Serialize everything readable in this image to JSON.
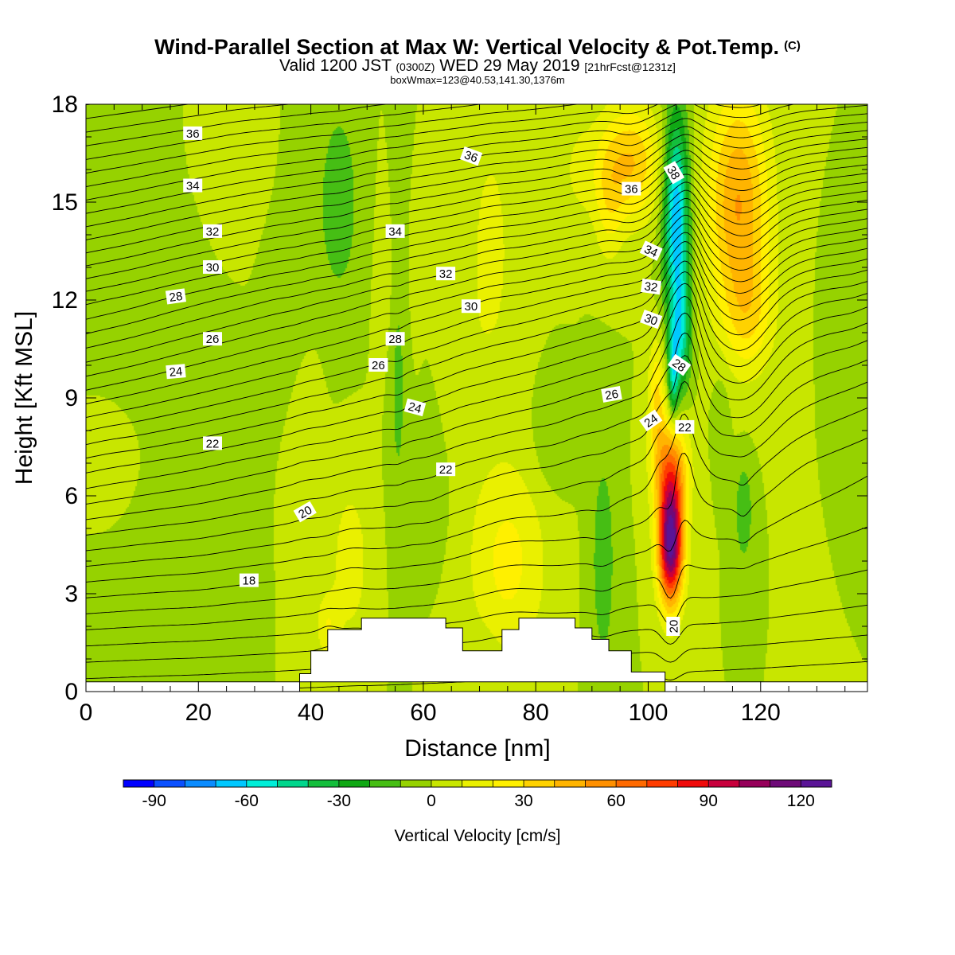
{
  "title": {
    "main": "Wind-Parallel Section at Max W: Vertical Velocity & Pot.Temp.",
    "copyright": "(C)",
    "valid_prefix": "Valid 1200 JST",
    "valid_utc": "(0300Z)",
    "valid_date": "WED 29 May 2019",
    "forecast": "[21hrFcst@1231z]",
    "box_info": "boxWmax=123@40.53,141.30,1376m"
  },
  "chart_data": {
    "type": "contour-section",
    "xlabel": "Distance [nm]",
    "ylabel": "Height [Kft MSL]",
    "xlim": [
      0,
      139
    ],
    "ylim": [
      0,
      18
    ],
    "x_ticks": [
      0,
      20,
      40,
      60,
      80,
      100,
      120
    ],
    "y_ticks": [
      0,
      3,
      6,
      9,
      12,
      15,
      18
    ],
    "colorbar": {
      "label": "Vertical Velocity [cm/s]",
      "tick_labels": [
        "-90",
        "-60",
        "-30",
        "0",
        "30",
        "60",
        "90",
        "120"
      ],
      "tick_values": [
        -90,
        -60,
        -30,
        0,
        30,
        60,
        90,
        120
      ],
      "min": -100,
      "max": 130,
      "step": 10,
      "colors": [
        "#0000ff",
        "#0a50ff",
        "#0a8cff",
        "#00c8ff",
        "#00eed8",
        "#00d68c",
        "#14be3c",
        "#10a814",
        "#46be14",
        "#96d200",
        "#c8e600",
        "#eaf000",
        "#fff000",
        "#ffd200",
        "#ffb400",
        "#ff9000",
        "#ff6a00",
        "#ff3c00",
        "#f00a0a",
        "#c8003c",
        "#96005a",
        "#6e0a78",
        "#5a1496"
      ]
    },
    "terrain": [
      [
        38,
        0
      ],
      [
        38,
        0.55
      ],
      [
        40,
        0.55
      ],
      [
        40,
        1.25
      ],
      [
        43,
        1.25
      ],
      [
        43,
        1.9
      ],
      [
        49,
        1.9
      ],
      [
        49,
        2.25
      ],
      [
        64,
        2.25
      ],
      [
        64,
        1.95
      ],
      [
        67,
        1.95
      ],
      [
        67,
        1.25
      ],
      [
        74,
        1.25
      ],
      [
        74,
        1.9
      ],
      [
        77,
        1.9
      ],
      [
        77,
        2.25
      ],
      [
        87,
        2.25
      ],
      [
        87,
        1.95
      ],
      [
        90,
        1.95
      ],
      [
        90,
        1.6
      ],
      [
        93,
        1.6
      ],
      [
        93,
        1.25
      ],
      [
        97,
        1.25
      ],
      [
        97,
        0.6
      ],
      [
        103,
        0.6
      ],
      [
        103,
        0
      ],
      [
        139,
        0
      ],
      [
        139,
        0.3
      ],
      [
        0,
        0.3
      ],
      [
        0,
        0
      ]
    ],
    "theta_labels": [
      {
        "text": "36",
        "x": 19,
        "y": 17.1,
        "angle": 0
      },
      {
        "text": "34",
        "x": 19,
        "y": 15.5,
        "angle": 0
      },
      {
        "text": "32",
        "x": 22.5,
        "y": 14.1,
        "angle": 0
      },
      {
        "text": "30",
        "x": 22.5,
        "y": 13.0,
        "angle": 0
      },
      {
        "text": "28",
        "x": 16,
        "y": 12.1,
        "angle": -8
      },
      {
        "text": "26",
        "x": 22.5,
        "y": 10.8,
        "angle": 0
      },
      {
        "text": "24",
        "x": 16,
        "y": 9.8,
        "angle": -5
      },
      {
        "text": "22",
        "x": 22.5,
        "y": 7.6,
        "angle": 0
      },
      {
        "text": "20",
        "x": 39,
        "y": 5.5,
        "angle": -30
      },
      {
        "text": "18",
        "x": 29,
        "y": 3.4,
        "angle": 0
      },
      {
        "text": "36",
        "x": 68.5,
        "y": 16.4,
        "angle": 20
      },
      {
        "text": "34",
        "x": 55,
        "y": 14.1,
        "angle": 0
      },
      {
        "text": "32",
        "x": 64,
        "y": 12.8,
        "angle": 0
      },
      {
        "text": "30",
        "x": 68.5,
        "y": 11.8,
        "angle": 0
      },
      {
        "text": "28",
        "x": 55,
        "y": 10.8,
        "angle": 0
      },
      {
        "text": "26",
        "x": 52,
        "y": 10.0,
        "angle": 0
      },
      {
        "text": "24",
        "x": 58.5,
        "y": 8.7,
        "angle": 15
      },
      {
        "text": "22",
        "x": 64,
        "y": 6.8,
        "angle": 0
      },
      {
        "text": "36",
        "x": 97,
        "y": 15.4,
        "angle": 0
      },
      {
        "text": "38",
        "x": 104.5,
        "y": 15.9,
        "angle": 60
      },
      {
        "text": "34",
        "x": 100.5,
        "y": 13.5,
        "angle": 25
      },
      {
        "text": "32",
        "x": 100.5,
        "y": 12.4,
        "angle": 8
      },
      {
        "text": "30",
        "x": 100.5,
        "y": 11.4,
        "angle": 20
      },
      {
        "text": "28",
        "x": 105.5,
        "y": 10.0,
        "angle": 35
      },
      {
        "text": "26",
        "x": 93.5,
        "y": 9.1,
        "angle": -10
      },
      {
        "text": "24",
        "x": 100.5,
        "y": 8.3,
        "angle": -35
      },
      {
        "text": "22",
        "x": 106.5,
        "y": 8.1,
        "angle": 0
      },
      {
        "text": "20",
        "x": 104.5,
        "y": 2.0,
        "angle": -90
      }
    ]
  }
}
